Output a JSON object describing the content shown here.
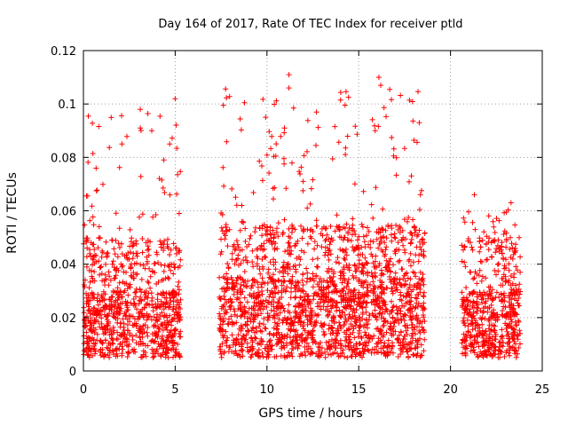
{
  "chart_data": {
    "type": "scatter",
    "title": "Day 164 of 2017, Rate Of TEC Index for receiver ptld",
    "xlabel": "GPS time / hours",
    "ylabel": "ROTI / TECUs",
    "xlim": [
      0,
      25
    ],
    "ylim": [
      0,
      0.12
    ],
    "xticks": [
      0,
      5,
      10,
      15,
      20,
      25
    ],
    "xtick_labels": [
      "0",
      "5",
      "10",
      "15",
      "20",
      "25"
    ],
    "yticks": [
      0,
      0.02,
      0.04,
      0.06,
      0.08,
      0.1,
      0.12
    ],
    "ytick_labels": [
      "0",
      "0.02",
      "0.04",
      "0.06",
      "0.08",
      "0.1",
      "0.12"
    ],
    "grid": true,
    "marker": "+",
    "marker_color": "#ff0000",
    "series": [
      {
        "name": "ROTI",
        "segments": [
          {
            "x_start": 0.0,
            "x_end": 5.3,
            "y_base_min": 0.005,
            "y_base_max": 0.03,
            "y_peak": 0.102,
            "count": 900
          },
          {
            "x_start": 7.4,
            "x_end": 18.6,
            "y_base_min": 0.005,
            "y_base_max": 0.035,
            "y_peak": 0.111,
            "count": 2000
          },
          {
            "x_start": 20.6,
            "x_end": 23.8,
            "y_base_min": 0.005,
            "y_base_max": 0.03,
            "y_peak": 0.066,
            "count": 550
          }
        ],
        "notable_points": [
          {
            "x": 11.2,
            "y": 0.111
          },
          {
            "x": 11.2,
            "y": 0.106
          },
          {
            "x": 16.1,
            "y": 0.11
          },
          {
            "x": 16.2,
            "y": 0.107
          },
          {
            "x": 5.0,
            "y": 0.102
          },
          {
            "x": 3.1,
            "y": 0.098
          },
          {
            "x": 3.1,
            "y": 0.091
          },
          {
            "x": 12.7,
            "y": 0.097
          },
          {
            "x": 18.3,
            "y": 0.093
          },
          {
            "x": 2.1,
            "y": 0.085
          },
          {
            "x": 4.7,
            "y": 0.085
          },
          {
            "x": 15.9,
            "y": 0.09
          },
          {
            "x": 21.3,
            "y": 0.066
          },
          {
            "x": 23.3,
            "y": 0.063
          }
        ]
      }
    ]
  }
}
